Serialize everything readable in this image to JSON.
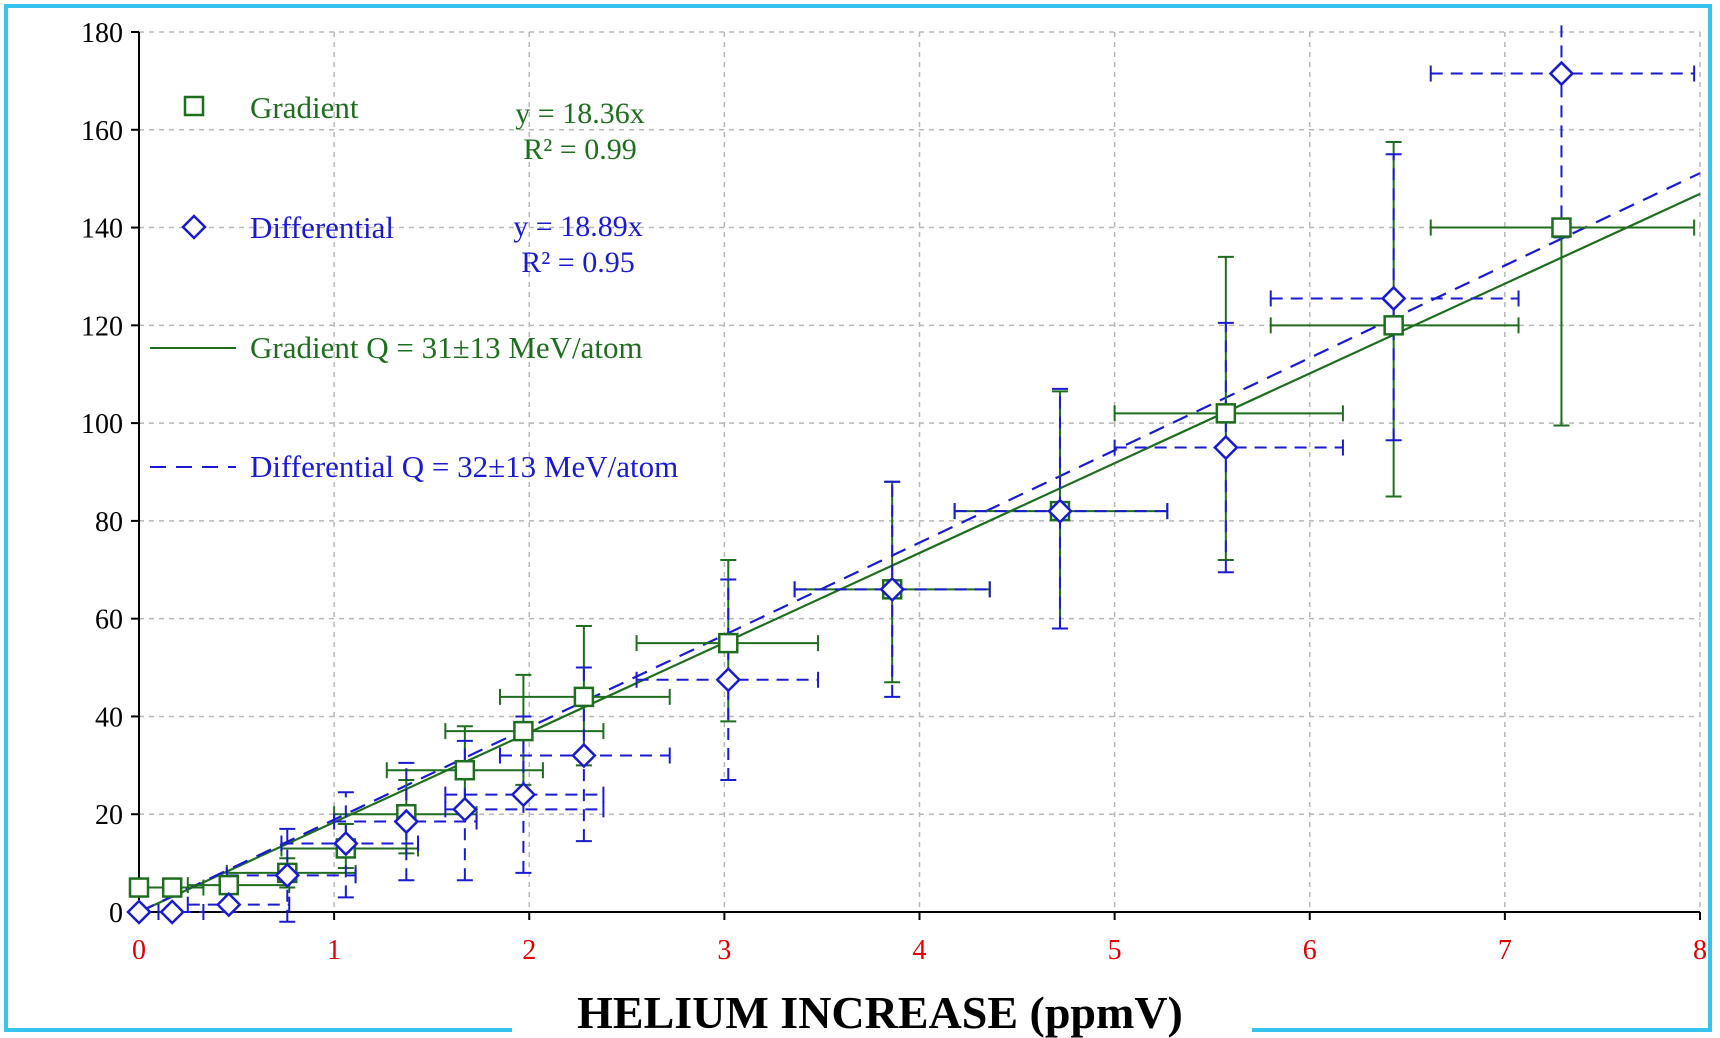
{
  "colors": {
    "gradient": "#1f6e1f",
    "differential": "#1a1ad0",
    "xtick": "#e00000",
    "border": "#37c3f0",
    "grid": "#b8b8b8"
  },
  "legend": {
    "gradient_label": "Gradient",
    "differential_label": "Differential",
    "gradient_fit_label": "Gradient Q = 31±13 MeV/atom",
    "differential_fit_label": "Differential Q = 32±13 MeV/atom",
    "gradient_eq": "y = 18.36x",
    "gradient_r2": "R² = 0.99",
    "differential_eq": "y = 18.89x",
    "differential_r2": "R² = 0.95"
  },
  "chart_data": {
    "type": "scatter",
    "xlabel": "HELIUM INCREASE (ppmV)",
    "ylabel": "",
    "xlim": [
      0,
      8
    ],
    "ylim": [
      0,
      180
    ],
    "x_ticks": [
      "0",
      "1",
      "2",
      "3",
      "4",
      "5",
      "6",
      "7",
      "8"
    ],
    "y_ticks": [
      "0",
      "20",
      "40",
      "60",
      "80",
      "100",
      "120",
      "140",
      "160",
      "180"
    ],
    "grid": true,
    "legend_position": "top-left",
    "series": [
      {
        "name": "Gradient",
        "marker": "square",
        "points": [
          {
            "x": 0.0,
            "y": 5,
            "xlo": 0.0,
            "xhi": 0.0,
            "ylo": 5,
            "yhi": 5
          },
          {
            "x": 0.17,
            "y": 5,
            "xlo": 0.0,
            "xhi": 0.33,
            "ylo": 5,
            "yhi": 5
          },
          {
            "x": 0.46,
            "y": 5.5,
            "xlo": 0.25,
            "xhi": 0.77,
            "ylo": 5.5,
            "yhi": 5.5
          },
          {
            "x": 0.76,
            "y": 8,
            "xlo": 0.45,
            "xhi": 1.11,
            "ylo": 5,
            "yhi": 11
          },
          {
            "x": 1.06,
            "y": 13,
            "xlo": 0.73,
            "xhi": 1.43,
            "ylo": 9,
            "yhi": 18
          },
          {
            "x": 1.37,
            "y": 20,
            "xlo": 1.0,
            "xhi": 1.73,
            "ylo": 12,
            "yhi": 27
          },
          {
            "x": 1.67,
            "y": 29,
            "xlo": 1.27,
            "xhi": 2.07,
            "ylo": 20,
            "yhi": 38
          },
          {
            "x": 1.97,
            "y": 37,
            "xlo": 1.57,
            "xhi": 2.38,
            "ylo": 26,
            "yhi": 48.5
          },
          {
            "x": 2.28,
            "y": 44,
            "xlo": 1.85,
            "xhi": 2.72,
            "ylo": 30,
            "yhi": 58.5
          },
          {
            "x": 3.02,
            "y": 55,
            "xlo": 2.55,
            "xhi": 3.48,
            "ylo": 39,
            "yhi": 72
          },
          {
            "x": 3.86,
            "y": 66,
            "xlo": 3.36,
            "xhi": 4.36,
            "ylo": 47,
            "yhi": 88
          },
          {
            "x": 4.72,
            "y": 82,
            "xlo": 4.18,
            "xhi": 5.27,
            "ylo": 58,
            "yhi": 106.5
          },
          {
            "x": 5.57,
            "y": 102,
            "xlo": 5.0,
            "xhi": 6.17,
            "ylo": 72,
            "yhi": 134
          },
          {
            "x": 6.43,
            "y": 120,
            "xlo": 5.8,
            "xhi": 7.07,
            "ylo": 85,
            "yhi": 157.5
          },
          {
            "x": 7.29,
            "y": 140,
            "xlo": 6.62,
            "xhi": 7.97,
            "ylo": 99.5,
            "yhi": 140
          }
        ]
      },
      {
        "name": "Differential",
        "marker": "diamond",
        "points": [
          {
            "x": 0.0,
            "y": 0,
            "xlo": 0.0,
            "xhi": 0.1,
            "ylo": 0,
            "yhi": 0
          },
          {
            "x": 0.17,
            "y": 0,
            "xlo": 0.0,
            "xhi": 0.33,
            "ylo": 0,
            "yhi": 0
          },
          {
            "x": 0.46,
            "y": 1.5,
            "xlo": 0.25,
            "xhi": 0.77,
            "ylo": 0,
            "yhi": 1.5
          },
          {
            "x": 0.76,
            "y": 7.5,
            "xlo": 0.45,
            "xhi": 1.11,
            "ylo": -2,
            "yhi": 17
          },
          {
            "x": 1.06,
            "y": 14,
            "xlo": 0.73,
            "xhi": 1.43,
            "ylo": 3,
            "yhi": 24.5
          },
          {
            "x": 1.37,
            "y": 18.5,
            "xlo": 1.0,
            "xhi": 1.73,
            "ylo": 6.5,
            "yhi": 30.5
          },
          {
            "x": 1.67,
            "y": 21,
            "xlo": 1.57,
            "xhi": 2.38,
            "ylo": 6.5,
            "yhi": 35
          },
          {
            "x": 1.97,
            "y": 24,
            "xlo": 1.57,
            "xhi": 2.38,
            "ylo": 8,
            "yhi": 40
          },
          {
            "x": 2.28,
            "y": 32,
            "xlo": 1.85,
            "xhi": 2.72,
            "ylo": 14.5,
            "yhi": 50
          },
          {
            "x": 3.02,
            "y": 47.5,
            "xlo": 2.55,
            "xhi": 3.48,
            "ylo": 27,
            "yhi": 68
          },
          {
            "x": 3.86,
            "y": 66,
            "xlo": 3.36,
            "xhi": 4.36,
            "ylo": 44,
            "yhi": 88
          },
          {
            "x": 4.72,
            "y": 82,
            "xlo": 4.18,
            "xhi": 5.27,
            "ylo": 58,
            "yhi": 107
          },
          {
            "x": 5.57,
            "y": 95,
            "xlo": 5.0,
            "xhi": 6.17,
            "ylo": 69.5,
            "yhi": 120.5
          },
          {
            "x": 6.43,
            "y": 125.5,
            "xlo": 5.8,
            "xhi": 7.07,
            "ylo": 96.5,
            "yhi": 155
          },
          {
            "x": 7.29,
            "y": 171.5,
            "xlo": 6.62,
            "xhi": 7.97,
            "ylo": 138,
            "yhi": 182
          }
        ]
      }
    ],
    "fits": [
      {
        "name": "Gradient Q = 31±13 MeV/atom",
        "slope": 18.36,
        "r2": 0.99,
        "style": "solid"
      },
      {
        "name": "Differential Q = 32±13 MeV/atom",
        "slope": 18.89,
        "r2": 0.95,
        "style": "dashed"
      }
    ]
  }
}
